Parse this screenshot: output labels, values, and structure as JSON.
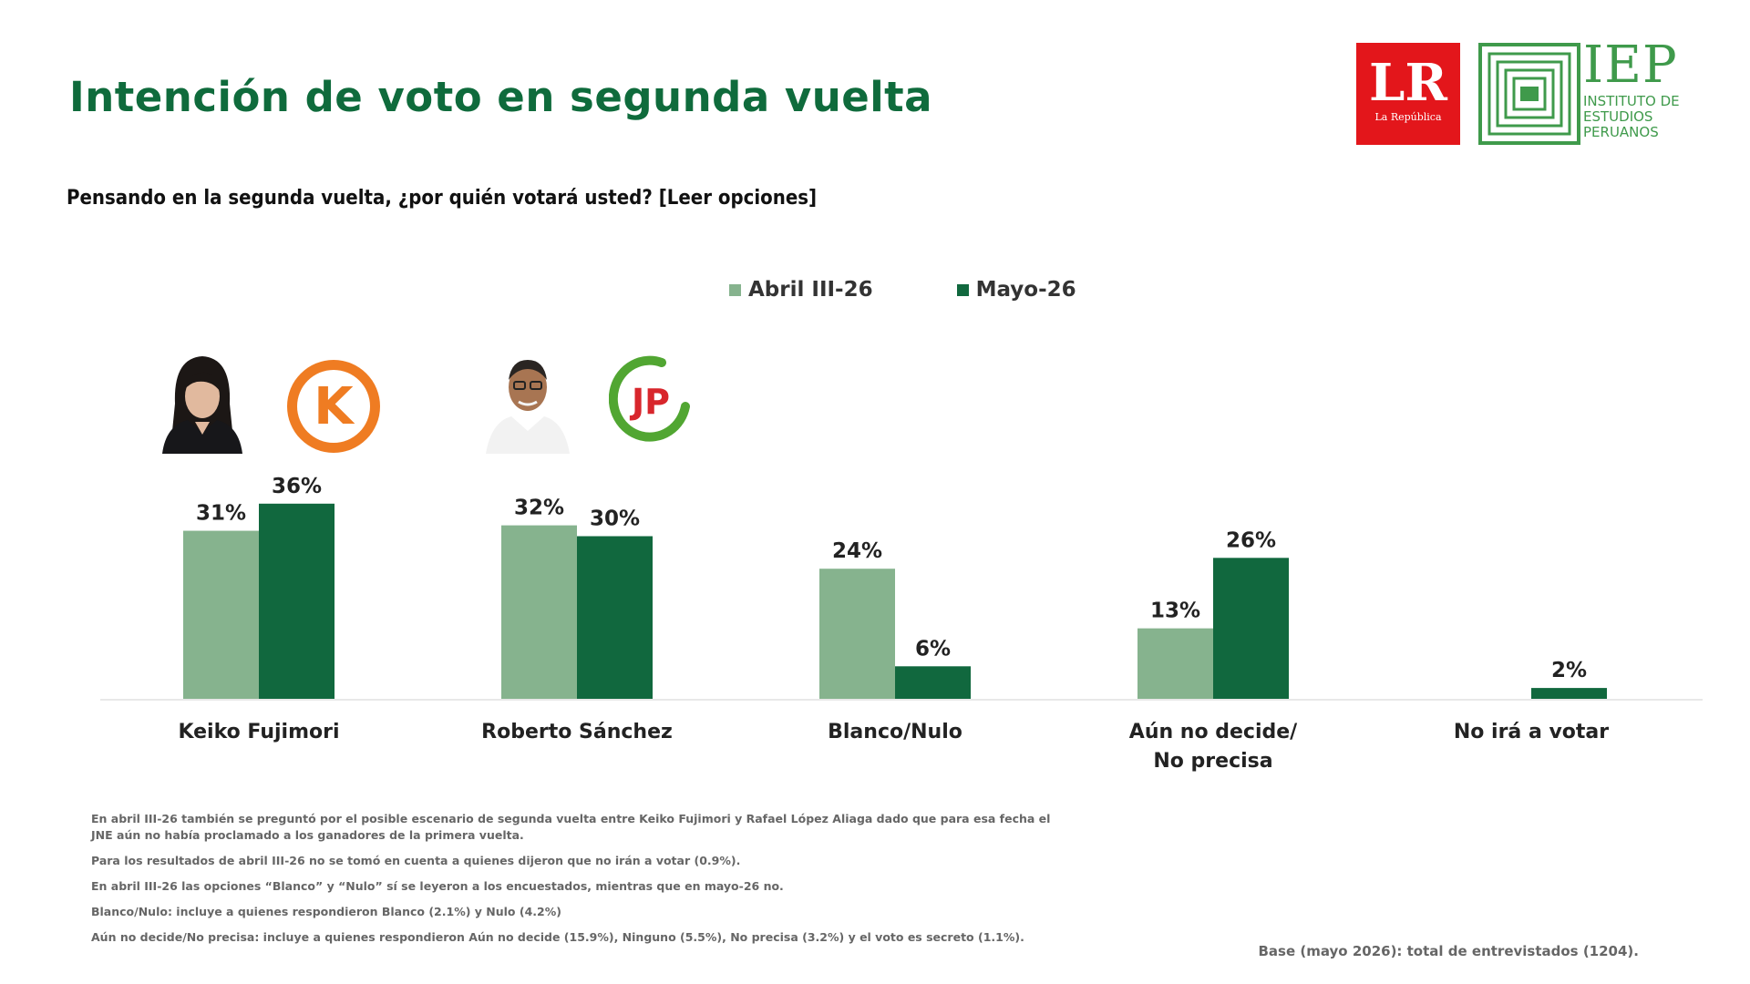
{
  "header": {
    "title": "Intención de voto en segunda vuelta",
    "question": "Pensando en la segunda vuelta, ¿por quién votará usted? [Leer opciones]",
    "logo_lr": "LR",
    "logo_lr_sub": "La República",
    "logo_iep": "IEP",
    "logo_iep_sub": [
      "INSTITUTO DE",
      "ESTUDIOS",
      "PERUANOS"
    ]
  },
  "colors": {
    "light_green": "#86b38e",
    "dark_green": "#11683e",
    "title_green": "#0f6b3c",
    "lr_red": "#e3161b",
    "fp_orange": "#ef7c22",
    "jp_green": "#51a632",
    "jp_red": "#d8262c"
  },
  "icons": {
    "candidate_1_photo": "woman-portrait-icon",
    "candidate_1_party": "fuerza-popular-k-logo-icon",
    "candidate_2_photo": "man-portrait-icon",
    "candidate_2_party": "juntos-por-el-peru-jp-logo-icon"
  },
  "party_logos": {
    "fp": "K",
    "jp": "JP"
  },
  "chart_data": {
    "type": "bar",
    "categories": [
      "Keiko Fujimori",
      "Roberto Sánchez",
      "Blanco/Nulo",
      "Aún no decide/ No precisa",
      "No irá a votar"
    ],
    "category_lines": [
      [
        "Keiko Fujimori"
      ],
      [
        "Roberto Sánchez"
      ],
      [
        "Blanco/Nulo"
      ],
      [
        "Aún no decide/",
        "No precisa"
      ],
      [
        "No irá a votar"
      ]
    ],
    "series": [
      {
        "name": "Abril III-26",
        "values": [
          31,
          32,
          24,
          13,
          null
        ],
        "labels": [
          "31%",
          "32%",
          "24%",
          "13%",
          ""
        ]
      },
      {
        "name": "Mayo-26",
        "values": [
          36,
          30,
          6,
          26,
          2
        ],
        "labels": [
          "36%",
          "30%",
          "6%",
          "26%",
          "2%"
        ]
      }
    ],
    "unit": "%",
    "ylim": [
      0,
      40
    ],
    "grid": false,
    "legend_position": "top-center"
  },
  "footnotes": [
    "En abril III-26 también se preguntó por el posible escenario de segunda vuelta entre Keiko Fujimori y Rafael López Aliaga dado que para esa fecha el JNE aún no había proclamado a los ganadores de la primera vuelta.",
    "Para los resultados de abril III-26 no se tomó en cuenta a quienes dijeron que no irán a votar (0.9%).",
    "En abril III-26 las opciones “Blanco” y “Nulo” sí se leyeron a los encuestados, mientras que en mayo-26 no.",
    "Blanco/Nulo: incluye a quienes respondieron Blanco (2.1%) y Nulo (4.2%)",
    "Aún no decide/No precisa: incluye a quienes respondieron Aún no decide (15.9%), Ninguno (5.5%), No precisa (3.2%) y el voto es secreto (1.1%)."
  ],
  "base": "Base (mayo 2026): total de entrevistados (1204)."
}
